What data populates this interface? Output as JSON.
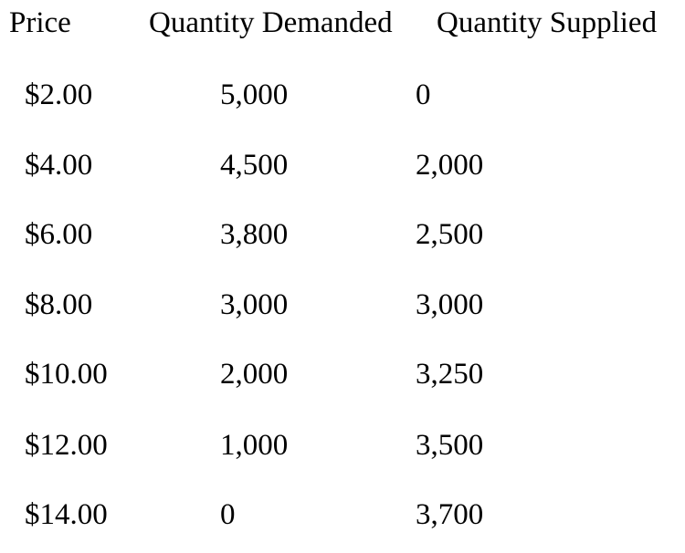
{
  "headers": {
    "price": "Price",
    "quantity_demanded": "Quantity Demanded",
    "quantity_supplied": "Quantity Supplied"
  },
  "rows": [
    {
      "price": "$2.00",
      "quantity_demanded": "5,000",
      "quantity_supplied": "0"
    },
    {
      "price": "$4.00",
      "quantity_demanded": "4,500",
      "quantity_supplied": "2,000"
    },
    {
      "price": "$6.00",
      "quantity_demanded": "3,800",
      "quantity_supplied": "2,500"
    },
    {
      "price": "$8.00",
      "quantity_demanded": "3,000",
      "quantity_supplied": "3,000"
    },
    {
      "price": "$10.00",
      "quantity_demanded": "2,000",
      "quantity_supplied": "3,250"
    },
    {
      "price": "$12.00",
      "quantity_demanded": "1,000",
      "quantity_supplied": "3,500"
    },
    {
      "price": "$14.00",
      "quantity_demanded": "0",
      "quantity_supplied": "3,700"
    }
  ]
}
